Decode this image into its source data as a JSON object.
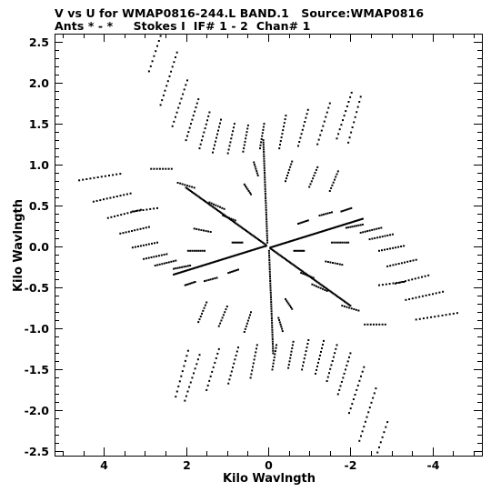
{
  "header": {
    "line1": "V vs U for WMAP0816-244.L BAND.1   Source:WMAP0816",
    "line2": "Ants * - *     Stokes I  IF# 1 - 2  Chan# 1"
  },
  "chart_data": {
    "type": "scatter",
    "title": "V vs U for WMAP0816-244.L BAND.1   Source:WMAP0816",
    "subtitle": "Ants * - *     Stokes I  IF# 1 - 2  Chan# 1",
    "xlabel": "Kilo Wavlngth",
    "ylabel": "Kilo Wavlngth",
    "xlim": [
      5.2,
      -5.2
    ],
    "ylim": [
      -2.55,
      2.6
    ],
    "x_reversed": true,
    "x_ticks": [
      4,
      2,
      0,
      -2,
      -4
    ],
    "x_tick_labels": [
      "4",
      "2",
      "0",
      "-2",
      "-4"
    ],
    "y_ticks": [
      2.5,
      2.0,
      1.5,
      1.0,
      0.5,
      0.0,
      -0.5,
      -1.0,
      -1.5,
      -2.0,
      -2.5
    ],
    "y_tick_labels": [
      "2.5",
      "2.0",
      "1.5",
      "1.0",
      "0.5",
      "0.0",
      "-0.5",
      "-1.0",
      "-1.5",
      "-2.0",
      "-2.5"
    ],
    "grid": false,
    "marker_color": "#000000",
    "symmetric_about_origin": true,
    "tracks": [
      {
        "center": [
          2.68,
          2.48
        ],
        "dir": [
          -0.22,
          0.34
        ],
        "n": 12
      },
      {
        "center": [
          2.42,
          2.05
        ],
        "dir": [
          -0.2,
          0.32
        ],
        "n": 12
      },
      {
        "center": [
          2.15,
          1.75
        ],
        "dir": [
          -0.18,
          0.28
        ],
        "n": 11
      },
      {
        "center": [
          1.85,
          1.55
        ],
        "dir": [
          -0.15,
          0.25
        ],
        "n": 11
      },
      {
        "center": [
          1.55,
          1.42
        ],
        "dir": [
          -0.12,
          0.22
        ],
        "n": 10
      },
      {
        "center": [
          1.25,
          1.35
        ],
        "dir": [
          -0.1,
          0.2
        ],
        "n": 10
      },
      {
        "center": [
          0.9,
          1.32
        ],
        "dir": [
          -0.08,
          0.18
        ],
        "n": 9
      },
      {
        "center": [
          0.55,
          1.32
        ],
        "dir": [
          -0.06,
          0.16
        ],
        "n": 9
      },
      {
        "center": [
          0.15,
          1.35
        ],
        "dir": [
          -0.05,
          0.15
        ],
        "n": 9
      },
      {
        "center": [
          -0.35,
          1.4
        ],
        "dir": [
          -0.08,
          0.2
        ],
        "n": 10
      },
      {
        "center": [
          -0.85,
          1.45
        ],
        "dir": [
          -0.12,
          0.22
        ],
        "n": 10
      },
      {
        "center": [
          -1.35,
          1.5
        ],
        "dir": [
          -0.15,
          0.25
        ],
        "n": 10
      },
      {
        "center": [
          -1.85,
          1.6
        ],
        "dir": [
          -0.18,
          0.28
        ],
        "n": 11
      },
      {
        "center": [
          -2.1,
          1.55
        ],
        "dir": [
          -0.15,
          0.28
        ],
        "n": 10
      },
      {
        "center": [
          -0.5,
          0.92
        ],
        "dir": [
          -0.08,
          0.12
        ],
        "n": 8
      },
      {
        "center": [
          -1.1,
          0.85
        ],
        "dir": [
          -0.1,
          0.12
        ],
        "n": 8
      },
      {
        "center": [
          -1.6,
          0.8
        ],
        "dir": [
          -0.1,
          0.12
        ],
        "n": 8
      },
      {
        "center": [
          4.1,
          0.85
        ],
        "dir": [
          0.5,
          -0.04
        ],
        "n": 12
      },
      {
        "center": [
          3.8,
          0.6
        ],
        "dir": [
          0.45,
          -0.05
        ],
        "n": 12
      },
      {
        "center": [
          3.5,
          0.4
        ],
        "dir": [
          0.4,
          -0.05
        ],
        "n": 11
      },
      {
        "center": [
          3.25,
          0.2
        ],
        "dir": [
          0.35,
          -0.04
        ],
        "n": 11
      },
      {
        "center": [
          3.0,
          0.02
        ],
        "dir": [
          0.3,
          -0.03
        ],
        "n": 10
      },
      {
        "center": [
          2.75,
          -0.12
        ],
        "dir": [
          0.28,
          -0.03
        ],
        "n": 10
      },
      {
        "center": [
          2.5,
          -0.2
        ],
        "dir": [
          0.25,
          -0.03
        ],
        "n": 10
      },
      {
        "center": [
          2.1,
          -0.25
        ],
        "dir": [
          0.2,
          -0.02
        ],
        "n": 9
      },
      {
        "center": [
          1.75,
          -0.05
        ],
        "dir": [
          0.2,
          0.0
        ],
        "n": 9
      },
      {
        "center": [
          1.6,
          0.2
        ],
        "dir": [
          0.2,
          0.02
        ],
        "n": 8
      },
      {
        "center": [
          1.25,
          0.5
        ],
        "dir": [
          0.18,
          0.04
        ],
        "n": 8
      },
      {
        "center": [
          0.95,
          0.35
        ],
        "dir": [
          0.15,
          0.03
        ],
        "n": 7
      },
      {
        "center": [
          0.75,
          0.05
        ],
        "dir": [
          0.12,
          0.0
        ],
        "n": 7
      },
      {
        "center": [
          0.85,
          -0.3
        ],
        "dir": [
          0.12,
          -0.02
        ],
        "n": 7
      },
      {
        "center": [
          0.5,
          0.7
        ],
        "dir": [
          0.08,
          0.06
        ],
        "n": 7
      },
      {
        "center": [
          0.3,
          0.95
        ],
        "dir": [
          0.05,
          0.08
        ],
        "n": 7
      },
      {
        "center": [
          2.0,
          0.75
        ],
        "dir": [
          0.2,
          0.03
        ],
        "n": 8
      },
      {
        "center": [
          2.6,
          0.95
        ],
        "dir": [
          0.25,
          0.0
        ],
        "n": 8
      },
      {
        "center": [
          1.4,
          -0.4
        ],
        "dir": [
          0.15,
          -0.02
        ],
        "n": 7
      },
      {
        "center": [
          1.9,
          -0.45
        ],
        "dir": [
          0.12,
          -0.02
        ],
        "n": 7
      },
      {
        "center": [
          3.0,
          0.45
        ],
        "dir": [
          0.3,
          -0.02
        ],
        "n": 8
      }
    ],
    "lines": [
      {
        "from": [
          2.0,
          0.72
        ],
        "to": [
          0.05,
          0.02
        ],
        "n": 70
      },
      {
        "from": [
          0.05,
          0.01
        ],
        "to": [
          2.3,
          -0.34
        ],
        "n": 80
      },
      {
        "from": [
          0.02,
          0.05
        ],
        "to": [
          0.12,
          1.3
        ],
        "n": 45
      }
    ]
  }
}
